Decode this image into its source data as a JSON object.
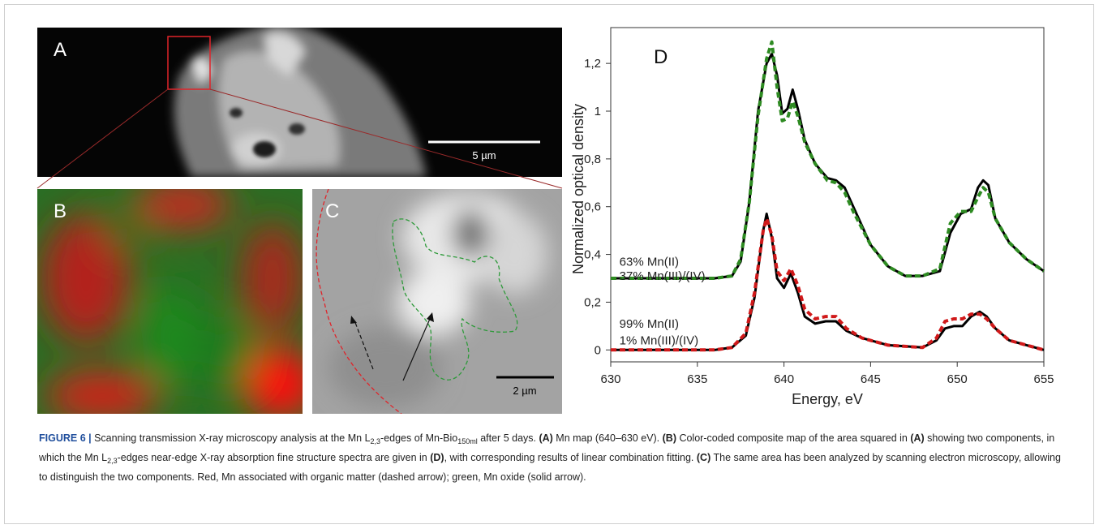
{
  "panels": {
    "a": {
      "letter": "A",
      "scalebar_label": "5 µm"
    },
    "b": {
      "letter": "B"
    },
    "c": {
      "letter": "C",
      "scalebar_label": "2 µm"
    },
    "d": {
      "letter": "D"
    }
  },
  "chart_data": {
    "type": "line",
    "title": "",
    "xlabel": "Energy, eV",
    "ylabel": "Normalized optical density",
    "xlim": [
      630,
      655
    ],
    "ylim": [
      -0.05,
      1.35
    ],
    "xticks": [
      "630",
      "635",
      "640",
      "645",
      "650",
      "655"
    ],
    "yticks": [
      "0",
      "0,2",
      "0,4",
      "0,6",
      "0,8",
      "1",
      "1,2"
    ],
    "grid": false,
    "annotations": [
      {
        "text": "63% Mn(II)"
      },
      {
        "text": "37% Mn(III)/(IV)"
      },
      {
        "text": "99% Mn(II)"
      },
      {
        "text": "1% Mn(III)/(IV)"
      }
    ],
    "series": [
      {
        "color": "#000000",
        "style": "solid",
        "x": [
          630,
          636,
          637,
          637.5,
          638,
          638.5,
          639,
          639.3,
          639.6,
          639.9,
          640.2,
          640.5,
          640.8,
          641.2,
          641.8,
          642.5,
          643,
          643.5,
          644,
          645,
          646,
          647,
          648,
          649,
          649.6,
          650.2,
          650.8,
          651.2,
          651.5,
          651.8,
          652.2,
          653,
          654,
          655
        ],
        "y": [
          0.3,
          0.3,
          0.31,
          0.37,
          0.62,
          1.0,
          1.2,
          1.24,
          1.15,
          0.99,
          1.01,
          1.09,
          1.01,
          0.88,
          0.78,
          0.72,
          0.71,
          0.68,
          0.6,
          0.44,
          0.35,
          0.31,
          0.31,
          0.33,
          0.49,
          0.57,
          0.59,
          0.68,
          0.71,
          0.69,
          0.55,
          0.45,
          0.38,
          0.33
        ]
      },
      {
        "color": "#2e8b22",
        "style": "dashed",
        "x": [
          630,
          636,
          637,
          637.5,
          638,
          638.5,
          639,
          639.3,
          639.6,
          639.9,
          640.2,
          640.5,
          640.8,
          641.2,
          641.8,
          642.5,
          643,
          643.5,
          644,
          645,
          646,
          647,
          648,
          649,
          649.6,
          650.2,
          650.8,
          651.2,
          651.5,
          651.8,
          652.2,
          653,
          654,
          655
        ],
        "y": [
          0.3,
          0.3,
          0.31,
          0.38,
          0.62,
          0.98,
          1.22,
          1.29,
          1.1,
          0.96,
          0.97,
          1.04,
          0.98,
          0.87,
          0.78,
          0.71,
          0.7,
          0.66,
          0.58,
          0.44,
          0.35,
          0.31,
          0.31,
          0.34,
          0.53,
          0.58,
          0.58,
          0.64,
          0.68,
          0.66,
          0.55,
          0.45,
          0.38,
          0.33
        ]
      },
      {
        "color": "#000000",
        "style": "solid",
        "x": [
          630,
          636,
          637,
          637.8,
          638.3,
          638.8,
          639,
          639.3,
          639.6,
          640,
          640.4,
          640.8,
          641.2,
          641.8,
          642.4,
          643,
          643.6,
          644.5,
          646,
          648,
          648.8,
          649.3,
          649.8,
          650.3,
          650.8,
          651.3,
          651.7,
          652.2,
          653,
          654,
          655
        ],
        "y": [
          0.0,
          0.0,
          0.01,
          0.06,
          0.22,
          0.5,
          0.57,
          0.47,
          0.3,
          0.26,
          0.32,
          0.24,
          0.14,
          0.11,
          0.12,
          0.12,
          0.08,
          0.05,
          0.02,
          0.01,
          0.04,
          0.09,
          0.1,
          0.1,
          0.14,
          0.16,
          0.14,
          0.09,
          0.04,
          0.02,
          0.0
        ]
      },
      {
        "color": "#d0191a",
        "style": "dashed",
        "x": [
          630,
          636,
          637,
          637.8,
          638.3,
          638.8,
          639,
          639.3,
          639.6,
          640,
          640.4,
          640.8,
          641.2,
          641.8,
          642.4,
          643,
          643.6,
          644.5,
          646,
          648,
          648.8,
          649.3,
          649.8,
          650.3,
          650.8,
          651.3,
          651.7,
          652.2,
          653,
          654,
          655
        ],
        "y": [
          0.0,
          0.0,
          0.01,
          0.07,
          0.24,
          0.5,
          0.55,
          0.48,
          0.33,
          0.29,
          0.34,
          0.27,
          0.17,
          0.13,
          0.14,
          0.14,
          0.09,
          0.05,
          0.02,
          0.01,
          0.05,
          0.12,
          0.13,
          0.13,
          0.15,
          0.15,
          0.13,
          0.09,
          0.04,
          0.02,
          0.0
        ]
      }
    ]
  },
  "caption": {
    "head": "FIGURE 6 |",
    "t1": " Scanning transmission X-ray microscopy analysis at the Mn L",
    "sub1": "2,3",
    "t2": "-edges of Mn-Bio",
    "sub2": "150ml",
    "t3": " after 5 days. ",
    "b_a": "(A)",
    "t4": " Mn map (640–630 eV). ",
    "b_b": "(B)",
    "t5": " Color-coded composite map of the area squared in ",
    "b_a2": "(A)",
    "t6": " showing two components, in which the Mn L",
    "sub3": "2,3",
    "t7": "-edges near-edge X-ray absorption fine structure spectra are given in ",
    "b_d": "(D)",
    "t8": ", with corresponding results of linear combination fitting. ",
    "b_c": "(C)",
    "t9": " The same area has been analyzed by scanning electron microscopy, allowing to distinguish the two components. Red, Mn associated with organic matter (dashed arrow); green, Mn oxide (solid arrow)."
  }
}
